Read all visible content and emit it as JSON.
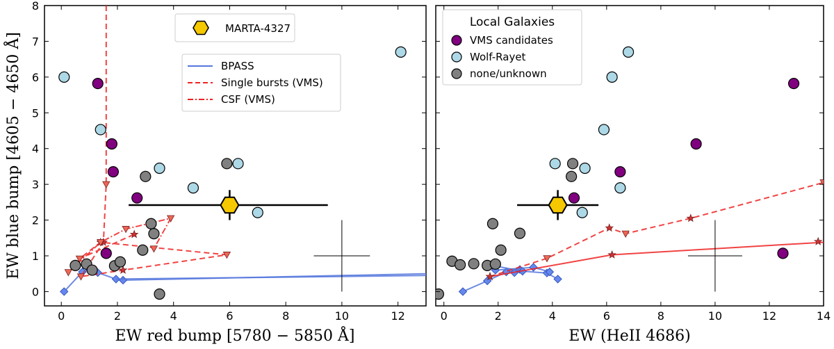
{
  "colors": {
    "vms": "#800080",
    "wolf_rayet": "#add8e6",
    "none_unknown": "#808080",
    "marta": "#f5c800",
    "bpass": "#5577dd",
    "red_lines": "#ee2222",
    "model_marker": "#ee6655"
  },
  "chart_data": [
    {
      "type": "scatter",
      "xlabel": "EW red bump [5780 − 5850 Å]",
      "ylabel": "EW blue bump [4605 − 4650 Å]",
      "xlim": [
        -0.6,
        13
      ],
      "ylim": [
        -0.4,
        8
      ],
      "xticks": [
        "0",
        "2",
        "4",
        "6",
        "8",
        "10",
        "12"
      ],
      "yticks": [
        "0",
        "1",
        "2",
        "3",
        "4",
        "5",
        "6",
        "7",
        "8"
      ],
      "legend_marta": {
        "label": "MARTA-4327",
        "placement": "top-center"
      },
      "legend_models": {
        "placement": "upper-right",
        "entries": [
          {
            "label": "BPASS",
            "style": "solid",
            "color": "#5577dd"
          },
          {
            "label": "Single bursts (VMS)",
            "style": "dashed",
            "color": "#ee2222"
          },
          {
            "label": "CSF (VMS)",
            "style": "dashdot",
            "color": "#ee2222"
          }
        ]
      },
      "marta": {
        "x": 6.0,
        "y": 2.42,
        "xerr_low": 3.6,
        "xerr_high": 3.5,
        "yerr": 0.42
      },
      "typical_error": {
        "x": 10.0,
        "y": 1.0,
        "xerr": 1.0,
        "yerr": 1.0
      },
      "series": [
        {
          "name": "VMS candidates",
          "color": "#800080",
          "points": [
            [
              1.3,
              5.82
            ],
            [
              1.8,
              4.13
            ],
            [
              1.85,
              3.35
            ],
            [
              2.7,
              2.62
            ],
            [
              1.6,
              1.07
            ]
          ]
        },
        {
          "name": "Wolf-Rayet",
          "color": "#add8e6",
          "points": [
            [
              0.1,
              6.0
            ],
            [
              1.4,
              4.53
            ],
            [
              3.5,
              3.45
            ],
            [
              4.7,
              2.9
            ],
            [
              6.3,
              3.58
            ],
            [
              7.0,
              2.21
            ],
            [
              12.1,
              6.7
            ]
          ]
        },
        {
          "name": "none/unknown",
          "color": "#808080",
          "points": [
            [
              0.5,
              0.73
            ],
            [
              0.9,
              0.77
            ],
            [
              1.1,
              0.6
            ],
            [
              1.9,
              0.72
            ],
            [
              2.1,
              0.83
            ],
            [
              2.9,
              1.16
            ],
            [
              3.0,
              3.22
            ],
            [
              3.2,
              1.9
            ],
            [
              3.3,
              1.62
            ],
            [
              5.9,
              3.58
            ],
            [
              3.5,
              -0.07
            ]
          ]
        }
      ],
      "bpass": [
        [
          0.1,
          0.0
        ],
        [
          0.75,
          0.55
        ],
        [
          1.0,
          0.62
        ],
        [
          1.3,
          0.53
        ],
        [
          1.95,
          0.35
        ],
        [
          2.2,
          0.32
        ],
        [
          13.0,
          0.5
        ]
      ],
      "bpass_extra": [
        [
          1.95,
          0.35
        ],
        [
          13.0,
          0.45
        ]
      ],
      "single_bursts": [
        [
          1.6,
          8.0
        ],
        [
          1.6,
          3.0
        ],
        [
          1.5,
          1.38
        ],
        [
          0.7,
          0.42
        ],
        [
          2.2,
          0.6
        ],
        [
          5.9,
          1.03
        ],
        [
          1.4,
          1.38
        ],
        [
          0.65,
          0.92
        ],
        [
          2.6,
          1.6
        ]
      ],
      "csf": [
        [
          0.25,
          0.54
        ],
        [
          1.4,
          1.38
        ],
        [
          2.3,
          1.75
        ],
        [
          3.9,
          2.05
        ],
        [
          3.3,
          1.2
        ]
      ]
    },
    {
      "type": "scatter",
      "xlabel": "EW (HeII 4686)",
      "xlim": [
        -0.3,
        14
      ],
      "ylim": [
        -0.4,
        8
      ],
      "xticks": [
        "0",
        "2",
        "4",
        "6",
        "8",
        "10",
        "12",
        "14"
      ],
      "legend": {
        "title": "Local Galaxies",
        "placement": "upper-left",
        "entries": [
          {
            "label": "VMS candidates",
            "color": "#800080"
          },
          {
            "label": "Wolf-Rayet",
            "color": "#add8e6"
          },
          {
            "label": "none/unknown",
            "color": "#808080"
          }
        ]
      },
      "marta": {
        "x": 4.2,
        "y": 2.42,
        "xerr": 1.5,
        "yerr": 0.42
      },
      "typical_error": {
        "x": 10.0,
        "y": 1.0,
        "xerr": 1.0,
        "yerr": 1.0
      },
      "series": [
        {
          "name": "VMS candidates",
          "color": "#800080",
          "points": [
            [
              12.9,
              5.82
            ],
            [
              9.3,
              4.13
            ],
            [
              6.5,
              3.35
            ],
            [
              4.8,
              2.62
            ],
            [
              12.5,
              1.07
            ]
          ]
        },
        {
          "name": "Wolf-Rayet",
          "color": "#add8e6",
          "points": [
            [
              6.8,
              6.7
            ],
            [
              6.2,
              6.0
            ],
            [
              5.9,
              4.53
            ],
            [
              4.1,
              3.58
            ],
            [
              5.2,
              3.45
            ],
            [
              6.5,
              2.9
            ],
            [
              5.1,
              2.21
            ]
          ]
        },
        {
          "name": "none/unknown",
          "color": "#808080",
          "points": [
            [
              -0.2,
              -0.07
            ],
            [
              0.3,
              0.85
            ],
            [
              0.6,
              0.75
            ],
            [
              1.1,
              0.78
            ],
            [
              1.6,
              0.73
            ],
            [
              1.8,
              1.9
            ],
            [
              2.1,
              1.16
            ],
            [
              2.8,
              1.63
            ],
            [
              4.75,
              3.58
            ],
            [
              4.7,
              3.22
            ],
            [
              1.9,
              0.77
            ]
          ]
        }
      ],
      "bpass_segments": [
        [
          [
            0.7,
            0.0
          ],
          [
            1.6,
            0.3
          ],
          [
            2.3,
            0.55
          ],
          [
            2.8,
            0.62
          ],
          [
            2.6,
            0.53
          ]
        ],
        [
          [
            1.8,
            0.73
          ],
          [
            2.9,
            0.57
          ],
          [
            3.8,
            0.52
          ],
          [
            4.2,
            0.35
          ]
        ],
        [
          [
            1.9,
            0.6
          ],
          [
            3.3,
            0.68
          ],
          [
            3.9,
            0.55
          ]
        ]
      ],
      "single_bursts": [
        [
          1.7,
          0.42
        ],
        [
          3.8,
          0.93
        ],
        [
          6.1,
          1.78
        ],
        [
          6.7,
          1.62
        ],
        [
          9.1,
          2.05
        ],
        [
          14.0,
          3.05
        ]
      ],
      "csf": [
        [
          1.7,
          0.42
        ],
        [
          6.2,
          1.03
        ],
        [
          14.0,
          1.38
        ]
      ],
      "csf_markers": [
        [
          1.7,
          0.42
        ],
        [
          6.2,
          1.03
        ],
        [
          13.8,
          1.4
        ]
      ]
    }
  ]
}
